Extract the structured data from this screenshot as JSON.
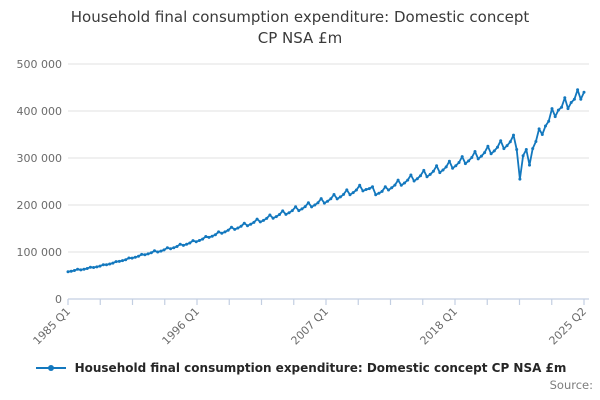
{
  "title": "Household final consumption expenditure: Domestic concept CP NSA £m",
  "source_label": "Source:",
  "legend": {
    "label": "Household final consumption expenditure: Domestic concept CP NSA £m",
    "marker": "line-with-dot"
  },
  "colors": {
    "line": "#1378be",
    "grid": "#e2e2e2",
    "axis": "#c3cfe2",
    "title_text": "#3a3a3a",
    "tick_text": "#6b6b6b",
    "legend_text": "#262626",
    "source_text": "#7d7d7d"
  },
  "chart_data": {
    "type": "line",
    "title": "Household final consumption expenditure: Domestic concept CP NSA £m",
    "xlabel": "",
    "ylabel": "",
    "frequency": "quarterly",
    "x_start": "1985 Q1",
    "x_end": "2025 Q2",
    "x_tick_count": 17,
    "x_tick_labels": [
      "1985 Q1",
      "1996 Q1",
      "2007 Q1",
      "2018 Q1",
      "2025 Q2"
    ],
    "labeled_tick_positions": [
      0,
      4,
      8,
      12,
      16
    ],
    "y_tick_labels": [
      "0",
      "100 000",
      "200 000",
      "300 000",
      "400 000",
      "500 000"
    ],
    "y_tick_values": [
      0,
      100000,
      200000,
      300000,
      400000,
      500000
    ],
    "ylim": [
      0,
      500000
    ],
    "grid": "horizontal",
    "legend_position": "bottom",
    "series": [
      {
        "name": "Household final consumption expenditure: Domestic concept CP NSA £m",
        "values": [
          58000,
          59200,
          60600,
          63200,
          62000,
          63200,
          64800,
          67600,
          67000,
          68300,
          70000,
          73000,
          73000,
          74500,
          76300,
          79600,
          80000,
          81600,
          83600,
          87200,
          87000,
          88700,
          90900,
          94800,
          94000,
          95900,
          98200,
          102500,
          100000,
          102000,
          104500,
          109000,
          107000,
          109100,
          111800,
          116600,
          114000,
          116300,
          119100,
          124300,
          122000,
          124400,
          127500,
          133000,
          131000,
          133600,
          136900,
          142800,
          140000,
          142800,
          146300,
          152600,
          148000,
          151000,
          154700,
          161300,
          156000,
          159100,
          163000,
          170000,
          164000,
          167300,
          171400,
          178800,
          172000,
          175400,
          179700,
          187500,
          180000,
          183600,
          188100,
          196200,
          188000,
          191800,
          196500,
          204900,
          196000,
          199900,
          204800,
          213600,
          204000,
          208100,
          213200,
          222400,
          213000,
          217300,
          222600,
          232200,
          222000,
          226400,
          232000,
          242000,
          230000,
          233000,
          235000,
          239000,
          222000,
          225000,
          229000,
          239000,
          232000,
          236600,
          242400,
          252900,
          242000,
          246800,
          252900,
          263800,
          251000,
          256000,
          262300,
          273600,
          260000,
          265200,
          271700,
          283400,
          269000,
          274400,
          281100,
          293200,
          278000,
          283600,
          290500,
          303000,
          288000,
          293800,
          301000,
          313900,
          298000,
          304000,
          311400,
          324800,
          309000,
          315200,
          322900,
          336800,
          320000,
          326400,
          334400,
          348800,
          318000,
          255000,
          305000,
          318000,
          285000,
          320000,
          335000,
          362000,
          350000,
          368000,
          378000,
          405000,
          388000,
          402000,
          408000,
          428000,
          405000,
          418000,
          425000,
          445000,
          425000,
          440000
        ]
      }
    ]
  }
}
